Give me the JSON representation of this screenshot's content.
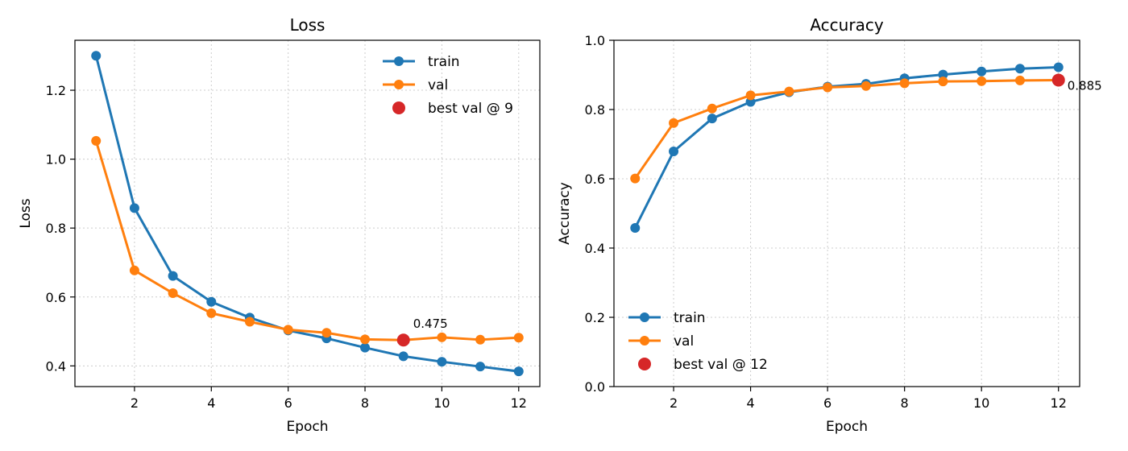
{
  "colors": {
    "train": "#1f77b4",
    "val": "#ff7f0e",
    "best": "#d62728",
    "grid": "#cccccc"
  },
  "chart_data": [
    {
      "type": "line",
      "title": "Loss",
      "xlabel": "Epoch",
      "ylabel": "Loss",
      "xlim": [
        0.45,
        12.55
      ],
      "ylim": [
        0.34,
        1.345
      ],
      "xticks": [
        2,
        4,
        6,
        8,
        10,
        12
      ],
      "yticks": [
        0.4,
        0.6,
        0.8,
        1.0,
        1.2
      ],
      "ytick_labels": [
        "0.4",
        "0.6",
        "0.8",
        "1.0",
        "1.2"
      ],
      "grid": true,
      "legend_position": "upper right",
      "x": [
        1,
        2,
        3,
        4,
        5,
        6,
        7,
        8,
        9,
        10,
        11,
        12
      ],
      "series": [
        {
          "name": "train",
          "values": [
            1.3,
            0.858,
            0.661,
            0.586,
            0.54,
            0.503,
            0.48,
            0.453,
            0.428,
            0.412,
            0.398,
            0.384
          ]
        },
        {
          "name": "val",
          "values": [
            1.053,
            0.677,
            0.611,
            0.553,
            0.528,
            0.505,
            0.496,
            0.477,
            0.475,
            0.483,
            0.476,
            0.482
          ]
        }
      ],
      "best": {
        "label": "best val @ 9",
        "x": 9,
        "y": 0.475,
        "annotation": "0.475"
      }
    },
    {
      "type": "line",
      "title": "Accuracy",
      "xlabel": "Epoch",
      "ylabel": "Accuracy",
      "xlim": [
        0.45,
        12.55
      ],
      "ylim": [
        0.0,
        1.0
      ],
      "xticks": [
        2,
        4,
        6,
        8,
        10,
        12
      ],
      "yticks": [
        0.0,
        0.2,
        0.4,
        0.6,
        0.8,
        1.0
      ],
      "ytick_labels": [
        "0.0",
        "0.2",
        "0.4",
        "0.6",
        "0.8",
        "1.0"
      ],
      "grid": true,
      "legend_position": "lower left",
      "x": [
        1,
        2,
        3,
        4,
        5,
        6,
        7,
        8,
        9,
        10,
        11,
        12
      ],
      "series": [
        {
          "name": "train",
          "values": [
            0.458,
            0.679,
            0.774,
            0.822,
            0.85,
            0.866,
            0.874,
            0.89,
            0.901,
            0.91,
            0.918,
            0.922
          ]
        },
        {
          "name": "val",
          "values": [
            0.601,
            0.761,
            0.803,
            0.841,
            0.852,
            0.864,
            0.868,
            0.876,
            0.881,
            0.882,
            0.884,
            0.885
          ]
        }
      ],
      "best": {
        "label": "best val @ 12",
        "x": 12,
        "y": 0.885,
        "annotation": "0.885"
      }
    }
  ]
}
